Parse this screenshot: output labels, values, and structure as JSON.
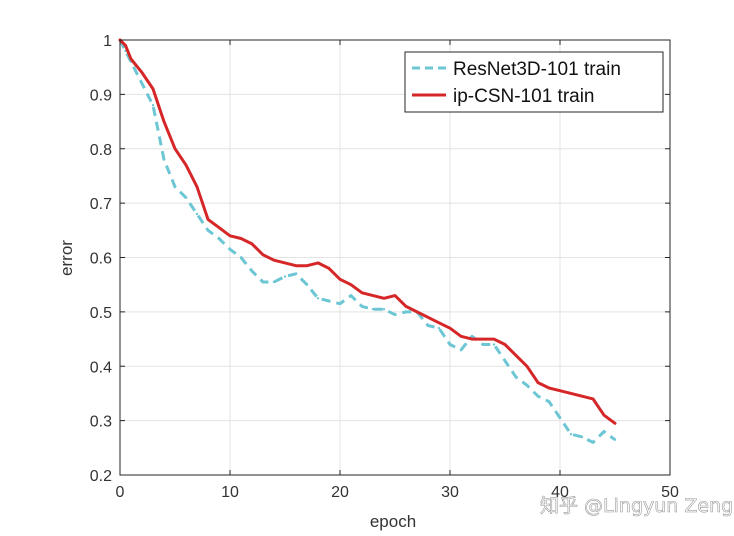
{
  "chart_data": {
    "type": "line",
    "xlabel": "epoch",
    "ylabel": "error",
    "xlim": [
      0,
      50
    ],
    "ylim": [
      0.2,
      1
    ],
    "xticks": [
      "0",
      "10",
      "20",
      "30",
      "40",
      "50"
    ],
    "yticks": [
      "0.2",
      "0.3",
      "0.4",
      "0.5",
      "0.6",
      "0.7",
      "0.8",
      "0.9",
      "1"
    ],
    "grid": true,
    "legend_position": "top-right",
    "series": [
      {
        "name": "ResNet3D-101 train",
        "color": "#6cc6d4",
        "style": "dashed",
        "x": [
          0,
          0.5,
          1,
          2,
          3,
          4,
          5,
          6,
          7,
          8,
          9,
          10,
          11,
          12,
          13,
          14,
          15,
          16,
          17,
          18,
          19,
          20,
          21,
          22,
          23,
          24,
          25,
          26,
          27,
          28,
          29,
          30,
          31,
          32,
          33,
          34,
          35,
          36,
          37,
          38,
          39,
          40,
          41,
          42,
          43,
          44,
          45
        ],
        "values": [
          1.0,
          0.98,
          0.96,
          0.92,
          0.88,
          0.78,
          0.73,
          0.71,
          0.68,
          0.65,
          0.635,
          0.615,
          0.6,
          0.575,
          0.555,
          0.555,
          0.565,
          0.57,
          0.55,
          0.525,
          0.52,
          0.515,
          0.53,
          0.51,
          0.505,
          0.505,
          0.495,
          0.5,
          0.5,
          0.475,
          0.47,
          0.44,
          0.43,
          0.455,
          0.44,
          0.44,
          0.41,
          0.38,
          0.365,
          0.345,
          0.335,
          0.305,
          0.275,
          0.27,
          0.26,
          0.28,
          0.265
        ]
      },
      {
        "name": "ip-CSN-101 train",
        "color": "#d62728",
        "style": "solid",
        "x": [
          0,
          0.5,
          1,
          2,
          3,
          4,
          5,
          6,
          7,
          8,
          9,
          10,
          11,
          12,
          13,
          14,
          15,
          16,
          17,
          18,
          19,
          20,
          21,
          22,
          23,
          24,
          25,
          26,
          27,
          28,
          29,
          30,
          31,
          32,
          33,
          34,
          35,
          36,
          37,
          38,
          39,
          40,
          41,
          42,
          43,
          44,
          45
        ],
        "values": [
          1.0,
          0.99,
          0.965,
          0.94,
          0.91,
          0.85,
          0.8,
          0.77,
          0.73,
          0.67,
          0.655,
          0.64,
          0.635,
          0.625,
          0.605,
          0.595,
          0.59,
          0.585,
          0.585,
          0.59,
          0.58,
          0.56,
          0.55,
          0.535,
          0.53,
          0.525,
          0.53,
          0.51,
          0.5,
          0.49,
          0.48,
          0.47,
          0.455,
          0.45,
          0.45,
          0.45,
          0.44,
          0.42,
          0.4,
          0.37,
          0.36,
          0.355,
          0.35,
          0.345,
          0.34,
          0.31,
          0.295
        ]
      }
    ]
  },
  "watermark": {
    "text": "知乎 @Lingyun Zeng"
  }
}
